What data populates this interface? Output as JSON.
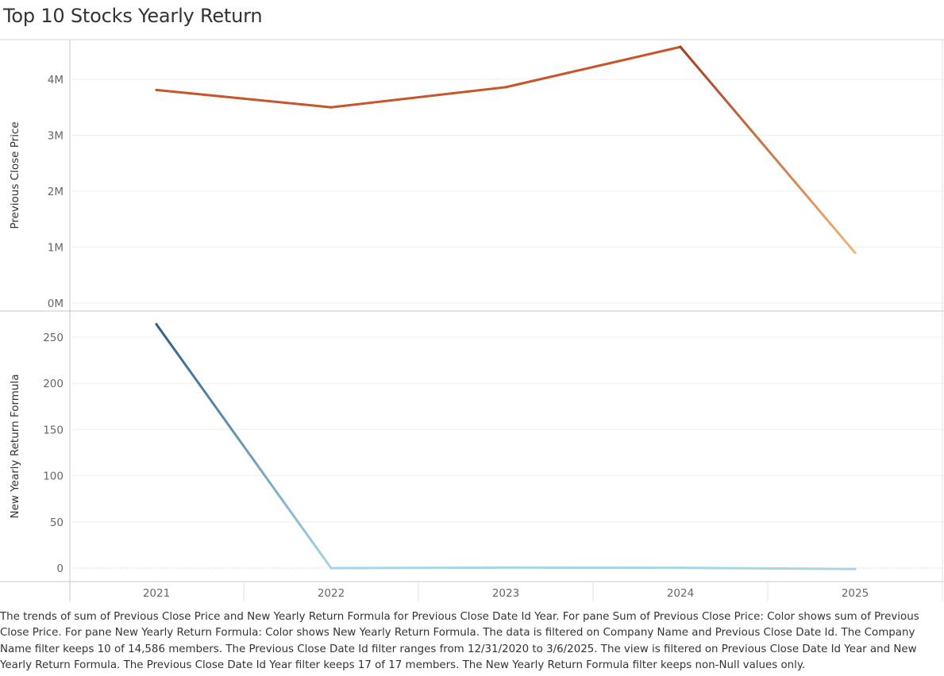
{
  "title": "Top 10 Stocks Yearly Return",
  "caption": "The trends of sum of Previous Close Price and New Yearly Return Formula for Previous Close Date Id Year.  For pane Sum of Previous Close Price:  Color shows sum of Previous Close Price.  For pane New Yearly Return Formula:  Color shows New Yearly Return Formula. The data is filtered on Company Name and Previous Close Date Id. The Company Name filter keeps 10 of 14,586 members. The Previous Close Date Id filter ranges from 12/31/2020 to 3/6/2025. The view is filtered on Previous Close Date Id Year and New Yearly Return Formula. The Previous Close Date Id Year filter keeps 17 of 17 members. The New Yearly Return Formula filter keeps non-Null values only.",
  "colors": {
    "price_dark": "#a33c1d",
    "price_mid": "#c8552a",
    "price_light": "#f2b37a",
    "return_dark": "#2f5f87",
    "return_light": "#a8d4e6",
    "axis_text": "#666666",
    "grid": "#eeeeee"
  },
  "chart_data": [
    {
      "type": "line",
      "pane": "top",
      "ylabel": "Previous Close Price",
      "x": [
        "2021",
        "2022",
        "2023",
        "2024",
        "2025"
      ],
      "values": [
        3810000,
        3500000,
        3860000,
        4580000,
        900000
      ],
      "yticks": [
        0,
        1000000,
        2000000,
        3000000,
        4000000
      ],
      "ytick_labels": [
        "0M",
        "1M",
        "2M",
        "3M",
        "4M"
      ],
      "ylim": [
        0,
        4700000
      ],
      "color_encoding": "sum of Previous Close Price"
    },
    {
      "type": "line",
      "pane": "bottom",
      "ylabel": "New Yearly Return Formula",
      "x": [
        "2021",
        "2022",
        "2023",
        "2024",
        "2025"
      ],
      "values": [
        264,
        0,
        0.5,
        0.3,
        -1
      ],
      "yticks": [
        0,
        50,
        100,
        150,
        200,
        250
      ],
      "ytick_labels": [
        "0",
        "50",
        "100",
        "150",
        "200",
        "250"
      ],
      "ylim": [
        -15,
        270
      ],
      "color_encoding": "New Yearly Return Formula"
    }
  ]
}
